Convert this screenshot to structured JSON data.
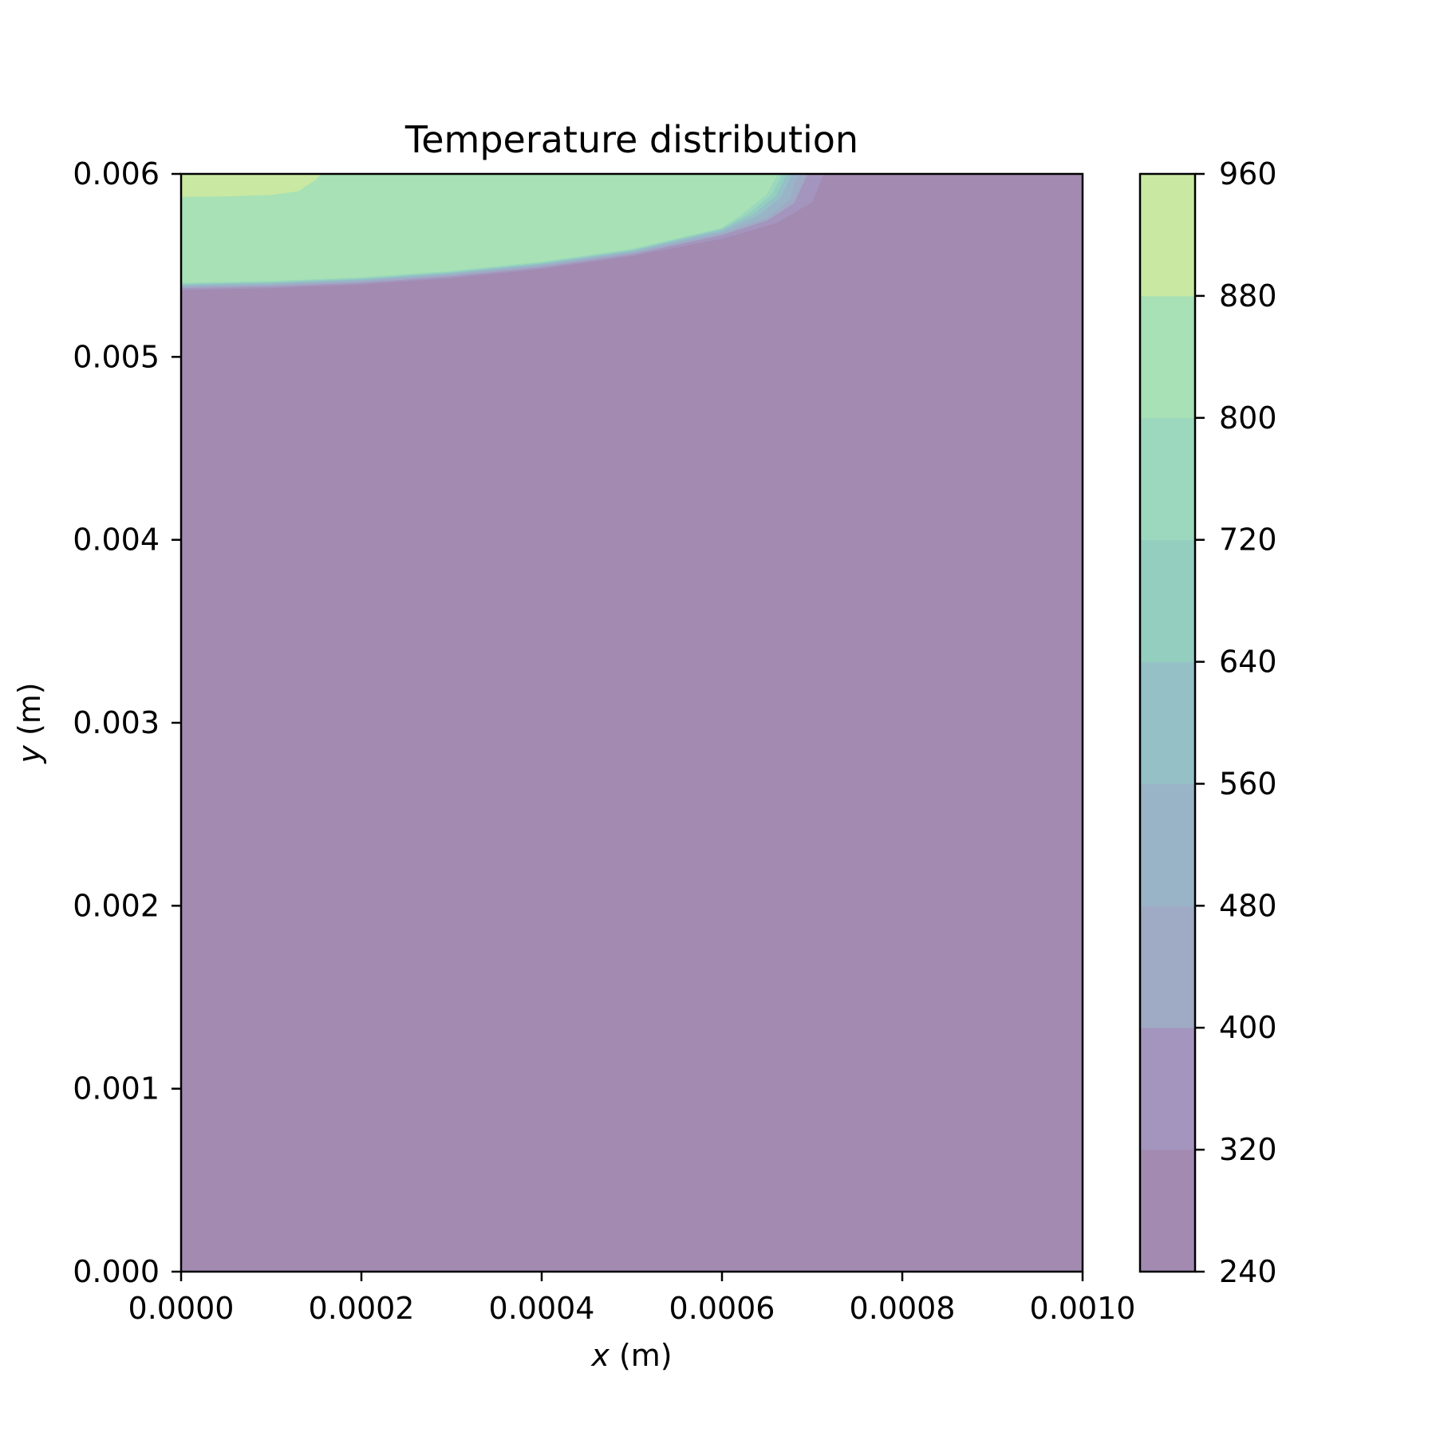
{
  "chart_data": {
    "type": "heatmap",
    "subtype": "filled-contour",
    "title": "Temperature distribution",
    "xlabel_var": "x",
    "xlabel_unit": " (m)",
    "ylabel_var": "y",
    "ylabel_unit": " (m)",
    "xlim": [
      0.0,
      0.001
    ],
    "ylim": [
      0.0,
      0.006
    ],
    "xticks": [
      0.0,
      0.0002,
      0.0004,
      0.0006,
      0.0008,
      0.001
    ],
    "xtick_labels": [
      "0.0000",
      "0.0002",
      "0.0004",
      "0.0006",
      "0.0008",
      "0.0010"
    ],
    "yticks": [
      0.0,
      0.001,
      0.002,
      0.003,
      0.004,
      0.005,
      0.006
    ],
    "ytick_labels": [
      "0.000",
      "0.001",
      "0.002",
      "0.003",
      "0.004",
      "0.005",
      "0.006"
    ],
    "colorbar": {
      "levels": [
        240,
        320,
        400,
        480,
        560,
        640,
        720,
        800,
        880,
        960
      ],
      "tick_labels": [
        "240",
        "320",
        "400",
        "480",
        "560",
        "640",
        "720",
        "800",
        "880",
        "960"
      ],
      "colors": [
        "#a28ab1",
        "#a395bd",
        "#9faac4",
        "#99b4c7",
        "#94c0c6",
        "#93cebf",
        "#9bd8bd",
        "#a7e1b5",
        "#c9e8a2",
        "#e8ed89"
      ],
      "alpha": 0.5
    },
    "contour_fronts": [
      {
        "level": 320,
        "points": [
          [
            0.0,
            0.005365
          ],
          [
            0.0001,
            0.005375
          ],
          [
            0.0002,
            0.005395
          ],
          [
            0.0003,
            0.00543
          ],
          [
            0.0004,
            0.00548
          ],
          [
            0.0005,
            0.00555
          ],
          [
            0.0006,
            0.005645
          ],
          [
            0.00066,
            0.00573
          ],
          [
            0.0007,
            0.005845
          ],
          [
            0.000713,
            0.006
          ]
        ]
      },
      {
        "level": 400,
        "points": [
          [
            0.0,
            0.005375
          ],
          [
            0.0001,
            0.005385
          ],
          [
            0.0002,
            0.005405
          ],
          [
            0.0003,
            0.00544
          ],
          [
            0.0004,
            0.00549
          ],
          [
            0.0005,
            0.00556
          ],
          [
            0.0006,
            0.005665
          ],
          [
            0.00065,
            0.005745
          ],
          [
            0.00068,
            0.00584
          ],
          [
            0.000695,
            0.006
          ]
        ]
      },
      {
        "level": 480,
        "points": [
          [
            0.0,
            0.005385
          ],
          [
            0.0001,
            0.005395
          ],
          [
            0.0002,
            0.005415
          ],
          [
            0.0003,
            0.00545
          ],
          [
            0.0004,
            0.0055
          ],
          [
            0.0005,
            0.00557
          ],
          [
            0.0006,
            0.005675
          ],
          [
            0.00065,
            0.00576
          ],
          [
            0.000675,
            0.00586
          ],
          [
            0.000685,
            0.006
          ]
        ]
      },
      {
        "level": 560,
        "points": [
          [
            0.0,
            0.00539
          ],
          [
            0.0001,
            0.0054
          ],
          [
            0.0002,
            0.00542
          ],
          [
            0.0003,
            0.005455
          ],
          [
            0.0004,
            0.005505
          ],
          [
            0.0005,
            0.005575
          ],
          [
            0.0006,
            0.005685
          ],
          [
            0.00064,
            0.00577
          ],
          [
            0.000665,
            0.00587
          ],
          [
            0.000678,
            0.006
          ]
        ]
      },
      {
        "level": 640,
        "points": [
          [
            0.0,
            0.005395
          ],
          [
            0.0001,
            0.005405
          ],
          [
            0.0002,
            0.005425
          ],
          [
            0.0003,
            0.00546
          ],
          [
            0.0004,
            0.00551
          ],
          [
            0.0005,
            0.00558
          ],
          [
            0.0006,
            0.005695
          ],
          [
            0.000635,
            0.00578
          ],
          [
            0.00066,
            0.00588
          ],
          [
            0.000672,
            0.006
          ]
        ]
      },
      {
        "level": 720,
        "points": [
          [
            0.0,
            0.0054
          ],
          [
            0.0001,
            0.00541
          ],
          [
            0.0002,
            0.00543
          ],
          [
            0.0003,
            0.005465
          ],
          [
            0.0004,
            0.005515
          ],
          [
            0.0005,
            0.005585
          ],
          [
            0.0006,
            0.0057
          ],
          [
            0.00063,
            0.005785
          ],
          [
            0.000655,
            0.005885
          ],
          [
            0.000667,
            0.006
          ]
        ]
      },
      {
        "level": 800,
        "points": [
          [
            0.0,
            0.005405
          ],
          [
            0.0001,
            0.005415
          ],
          [
            0.0002,
            0.005435
          ],
          [
            0.0003,
            0.00547
          ],
          [
            0.0004,
            0.00552
          ],
          [
            0.0005,
            0.00559
          ],
          [
            0.0006,
            0.005705
          ],
          [
            0.000625,
            0.00579
          ],
          [
            0.00065,
            0.00589
          ],
          [
            0.000662,
            0.006
          ]
        ]
      },
      {
        "level": 880,
        "points": [
          [
            0.0,
            0.005875
          ],
          [
            5e-05,
            0.005877
          ],
          [
            0.0001,
            0.005885
          ],
          [
            0.00013,
            0.005905
          ],
          [
            0.00015,
            0.00597
          ],
          [
            0.000155,
            0.006
          ]
        ]
      }
    ]
  }
}
